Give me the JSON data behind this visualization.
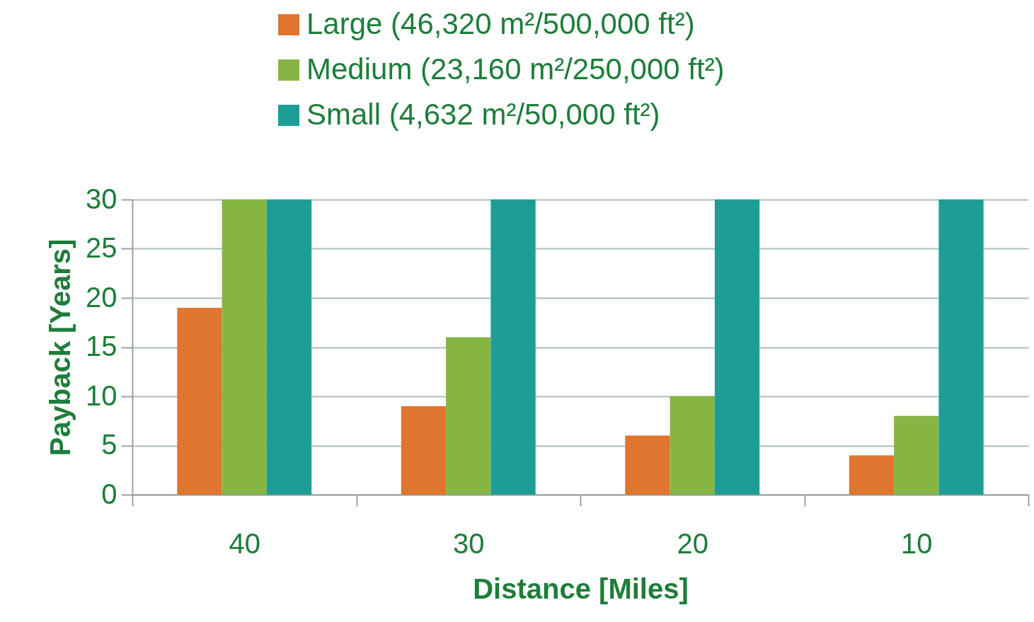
{
  "chart_data": {
    "type": "bar",
    "xlabel": "Distance [Miles]",
    "ylabel": "Payback [Years]",
    "categories": [
      "40",
      "30",
      "20",
      "10"
    ],
    "series": [
      {
        "name": "Large (46,320 m²/500,000 ft²)",
        "color": "#e07530",
        "values": [
          19,
          9,
          6,
          4
        ]
      },
      {
        "name": "Medium (23,160 m²/250,000 ft²)",
        "color": "#86b543",
        "values": [
          30,
          16,
          10,
          8
        ]
      },
      {
        "name": "Small (4,632 m²/50,000 ft²)",
        "color": "#1c9e97",
        "values": [
          30,
          30,
          30,
          30
        ]
      }
    ],
    "ylim": [
      0,
      30
    ],
    "yticks": [
      0,
      5,
      10,
      15,
      20,
      25,
      30
    ],
    "grid": "y",
    "legend": "top"
  }
}
